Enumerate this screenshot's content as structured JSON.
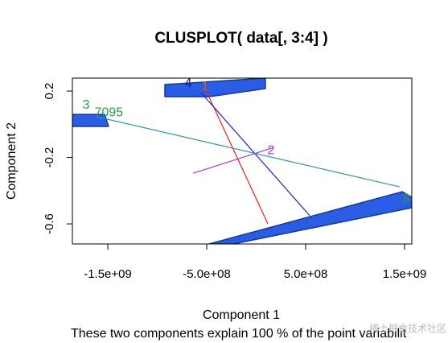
{
  "chart_data": {
    "type": "clusplot",
    "title": "CLUSPLOT( data[, 3:4] )",
    "xlabel": "Component 1",
    "ylabel": "Component 2",
    "subtitle": "These two components explain 100 % of the point variabilit",
    "watermark": "稀土掘金技术社区",
    "xlim": [
      -1858000000,
      1573000000
    ],
    "ylim": [
      -0.721,
      0.278
    ],
    "xticks": [
      {
        "value": -1500000000,
        "label": "-1.5e+09"
      },
      {
        "value": -500000000,
        "label": "-5.0e+08"
      },
      {
        "value": 500000000,
        "label": "5.0e+08"
      },
      {
        "value": 1500000000,
        "label": "1.5e+09"
      }
    ],
    "yticks": [
      0.2,
      -0.2,
      -0.6
    ],
    "clusters": [
      {
        "color": "#2a5ce6",
        "x": [
          -923000000,
          93000000,
          93000000,
          -476000000,
          -923000000
        ],
        "y": [
          0.239,
          0.278,
          0.215,
          0.166,
          0.166
        ]
      },
      {
        "color": "#2a5ce6",
        "x": [
          -476000000,
          1476000000,
          1573000000,
          1573000000,
          -230000000
        ],
        "y": [
          -0.721,
          -0.406,
          -0.44,
          -0.503,
          -0.721
        ]
      },
      {
        "color": "#2a5ce6",
        "x": [
          -1858000000,
          -1533000000,
          -1492000000,
          -1858000000
        ],
        "y": [
          0.059,
          0.059,
          -0.013,
          -0.013
        ]
      }
    ],
    "segments": [
      {
        "color": "#e02020",
        "x": [
          -516000000,
          118000000
        ],
        "y": [
          0.215,
          -0.6
        ]
      },
      {
        "color": "#2020c8",
        "x": [
          -557000000,
          541000000
        ],
        "y": [
          0.19,
          -0.55
        ]
      },
      {
        "color": "#2a9aa0",
        "x": [
          -1610000000,
          1450000000
        ],
        "y": [
          0.045,
          -0.377
        ]
      },
      {
        "color": "#9a40c0",
        "x": [
          -638000000,
          175000000
        ],
        "y": [
          -0.295,
          -0.14
        ]
      }
    ],
    "labels": [
      {
        "text": "4",
        "color": "#1a2a60",
        "x": -687000000,
        "y": 0.244
      },
      {
        "text": "1",
        "color": "#d06020",
        "x": -516000000,
        "y": 0.225
      },
      {
        "text": "3",
        "color": "#2a9a50",
        "x": -1720000000,
        "y": 0.113
      },
      {
        "text": "7095",
        "color": "#2a9a50",
        "x": -1490000000,
        "y": 0.069
      },
      {
        "text": "2",
        "color": "#9a40c0",
        "x": 150000000,
        "y": -0.16
      },
      {
        "text": "8",
        "color": "#2a9a50",
        "x": 1516000000,
        "y": -0.45
      }
    ]
  }
}
